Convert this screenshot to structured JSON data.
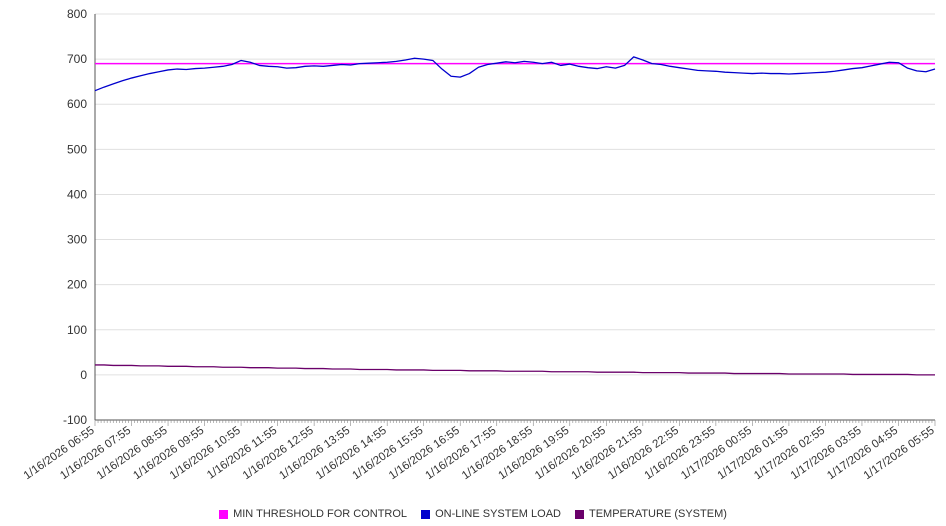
{
  "chart_data": {
    "type": "line",
    "title": "",
    "xlabel": "",
    "ylabel": "",
    "ylim": [
      -100,
      800
    ],
    "y_tick_step": 100,
    "grid": true,
    "legend_position": "bottom",
    "points_per_tick": 4,
    "x_tick_labels": [
      "1/16/2026 06:55",
      "1/16/2026 07:55",
      "1/16/2026 08:55",
      "1/16/2026 09:55",
      "1/16/2026 10:55",
      "1/16/2026 11:55",
      "1/16/2026 12:55",
      "1/16/2026 13:55",
      "1/16/2026 14:55",
      "1/16/2026 15:55",
      "1/16/2026 16:55",
      "1/16/2026 17:55",
      "1/16/2026 18:55",
      "1/16/2026 19:55",
      "1/16/2026 20:55",
      "1/16/2026 21:55",
      "1/16/2026 22:55",
      "1/16/2026 23:55",
      "1/17/2026 00:55",
      "1/17/2026 01:55",
      "1/17/2026 02:55",
      "1/17/2026 03:55",
      "1/17/2026 04:55",
      "1/17/2026 05:55"
    ],
    "series": [
      {
        "name": "MIN THRESHOLD FOR CONTROL",
        "color": "#ff00ff",
        "type": "constant",
        "value": 690
      },
      {
        "name": "ON-LINE SYSTEM LOAD",
        "color": "#0000cd",
        "type": "line",
        "values": [
          630,
          638,
          645,
          652,
          658,
          663,
          668,
          672,
          676,
          678,
          677,
          679,
          680,
          682,
          684,
          688,
          697,
          693,
          686,
          684,
          683,
          680,
          681,
          684,
          685,
          684,
          686,
          688,
          687,
          690,
          691,
          692,
          693,
          695,
          698,
          702,
          700,
          697,
          678,
          662,
          660,
          668,
          682,
          688,
          691,
          694,
          692,
          695,
          693,
          690,
          693,
          686,
          689,
          684,
          681,
          679,
          683,
          680,
          686,
          705,
          698,
          690,
          688,
          684,
          681,
          678,
          675,
          674,
          673,
          671,
          670,
          669,
          668,
          669,
          668,
          668,
          667,
          668,
          669,
          670,
          671,
          673,
          676,
          679,
          681,
          685,
          689,
          693,
          692,
          680,
          674,
          672,
          678
        ]
      },
      {
        "name": "TEMPERATURE (SYSTEM)",
        "color": "#6a006a",
        "type": "line",
        "values": [
          22,
          22,
          21,
          21,
          21,
          20,
          20,
          20,
          19,
          19,
          19,
          18,
          18,
          18,
          17,
          17,
          17,
          16,
          16,
          16,
          15,
          15,
          15,
          14,
          14,
          14,
          13,
          13,
          13,
          12,
          12,
          12,
          12,
          11,
          11,
          11,
          11,
          10,
          10,
          10,
          10,
          9,
          9,
          9,
          9,
          8,
          8,
          8,
          8,
          8,
          7,
          7,
          7,
          7,
          7,
          6,
          6,
          6,
          6,
          6,
          5,
          5,
          5,
          5,
          5,
          4,
          4,
          4,
          4,
          4,
          3,
          3,
          3,
          3,
          3,
          3,
          2,
          2,
          2,
          2,
          2,
          2,
          2,
          1,
          1,
          1,
          1,
          1,
          1,
          1,
          0,
          0,
          0
        ]
      }
    ],
    "axis_color": "#555555",
    "gridline_color": "#e0e0e0",
    "tick_label_color": "#333333"
  }
}
